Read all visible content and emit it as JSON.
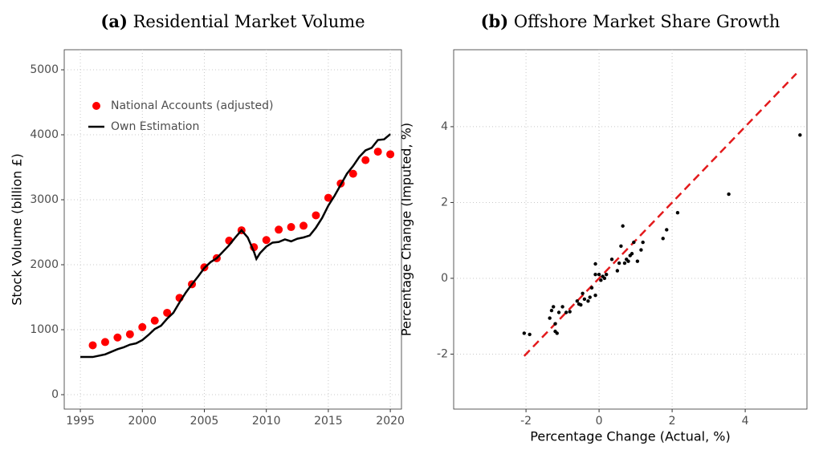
{
  "chart_data": [
    {
      "type": "line",
      "panel_label": "(a)",
      "title": "Residential Market Volume",
      "y_label": "Stock Volume (billion £)",
      "xlim": [
        1993.7,
        2020.9
      ],
      "xticks": [
        1995,
        2000,
        2005,
        2010,
        2015,
        2020
      ],
      "ylim": [
        -222,
        5309
      ],
      "yticks": [
        0,
        1000,
        2000,
        3000,
        4000,
        5000
      ],
      "grid": true,
      "legend": "top-left",
      "series": [
        {
          "name": "National Accounts (adjusted)",
          "style": "points",
          "color": "#ff0000",
          "x": [
            1996,
            1997,
            1998,
            1999,
            2000,
            2001,
            2002,
            2003,
            2004,
            2005,
            2006,
            2007,
            2008,
            2009,
            2010,
            2011,
            2012,
            2013,
            2014,
            2015,
            2016,
            2017,
            2018,
            2019,
            2020
          ],
          "values": [
            760,
            810,
            880,
            930,
            1040,
            1140,
            1260,
            1490,
            1700,
            1960,
            2100,
            2370,
            2530,
            2270,
            2380,
            2540,
            2580,
            2600,
            2760,
            3030,
            3250,
            3400,
            3610,
            3740,
            3700
          ]
        },
        {
          "name": "Own Estimation",
          "style": "line",
          "color": "#000000",
          "x": [
            1995,
            1995.5,
            1996,
            1996.5,
            1997,
            1997.5,
            1998,
            1998.5,
            1999,
            1999.5,
            2000,
            2000.5,
            2001,
            2001.5,
            2002,
            2002.5,
            2003,
            2003.5,
            2004,
            2004.5,
            2005,
            2005.5,
            2006,
            2006.5,
            2007,
            2007.5,
            2008,
            2008.5,
            2009,
            2009.2,
            2009.5,
            2010,
            2010.5,
            2011,
            2011.5,
            2012,
            2012.5,
            2013,
            2013.5,
            2014,
            2014.5,
            2015,
            2015.5,
            2016,
            2016.5,
            2017,
            2017.5,
            2018,
            2018.5,
            2019,
            2019.5,
            2020
          ],
          "values": [
            580,
            580,
            580,
            600,
            620,
            660,
            700,
            730,
            770,
            790,
            840,
            920,
            1010,
            1060,
            1170,
            1260,
            1420,
            1570,
            1700,
            1820,
            1950,
            2040,
            2100,
            2200,
            2300,
            2420,
            2530,
            2420,
            2200,
            2090,
            2180,
            2280,
            2340,
            2350,
            2390,
            2360,
            2400,
            2420,
            2450,
            2570,
            2720,
            2910,
            3060,
            3230,
            3400,
            3520,
            3660,
            3760,
            3800,
            3920,
            3930,
            4010
          ]
        }
      ]
    },
    {
      "type": "scatter",
      "panel_label": "(b)",
      "title": "Offshore Market Share Growth",
      "x_label": "Percentage Change (Actual, %)",
      "y_label": "Percentage Change (Imputed, %)",
      "xlim": [
        -3.98,
        5.69
      ],
      "xticks": [
        -2,
        0,
        2,
        4
      ],
      "ylim": [
        -3.45,
        6.03
      ],
      "yticks": [
        -2,
        0,
        2,
        4
      ],
      "grid": true,
      "color": "#000000",
      "x": [
        -2.05,
        -1.9,
        -1.35,
        -1.3,
        -1.25,
        -1.2,
        -1.2,
        -1.15,
        -1.1,
        -1.0,
        -0.9,
        -0.8,
        -0.6,
        -0.55,
        -0.5,
        -0.45,
        -0.4,
        -0.3,
        -0.25,
        -0.2,
        -0.1,
        -0.1,
        -0.1,
        0.0,
        0.05,
        0.1,
        0.15,
        0.2,
        0.35,
        0.5,
        0.55,
        0.6,
        0.65,
        0.7,
        0.75,
        0.8,
        0.85,
        0.9,
        0.95,
        1.05,
        1.15,
        1.2,
        1.75,
        1.85,
        2.15,
        3.55,
        5.5
      ],
      "values": [
        -1.45,
        -1.48,
        -1.05,
        -0.85,
        -0.75,
        -1.2,
        -1.4,
        -1.45,
        -0.9,
        -0.75,
        -0.9,
        -0.88,
        -0.6,
        -0.68,
        -0.7,
        -0.4,
        -0.55,
        -0.6,
        -0.5,
        -0.25,
        -0.45,
        0.1,
        0.38,
        0.1,
        -0.05,
        0.05,
        0.0,
        0.1,
        0.5,
        0.2,
        0.4,
        0.85,
        1.38,
        0.4,
        0.5,
        0.45,
        0.6,
        0.65,
        0.95,
        0.45,
        0.75,
        0.95,
        1.05,
        1.28,
        1.73,
        2.22,
        3.78
      ],
      "reference_line": {
        "color": "#e31a1c",
        "x": [
          -2.05,
          5.4
        ],
        "y": [
          -2.05,
          5.4
        ]
      }
    }
  ]
}
